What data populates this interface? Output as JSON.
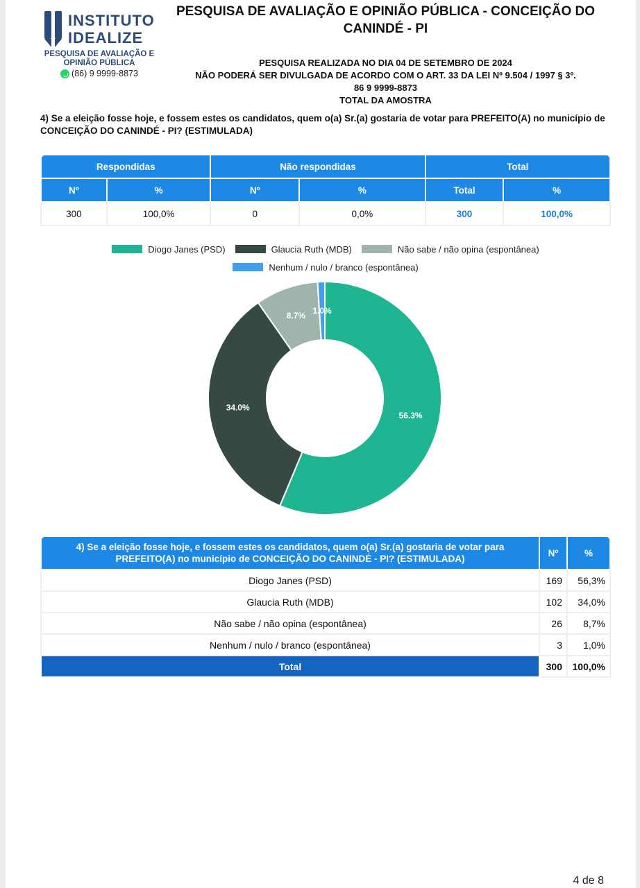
{
  "header": {
    "logo": {
      "name_line1": "INSTITUTO",
      "name_line2": "IDEALIZE",
      "subtitle": "PESQUISA DE AVALIAÇÃO E OPINIÃO PÚBLICA",
      "phone": "(86) 9 9999-8873"
    },
    "title": "PESQUISA DE AVALIAÇÃO E OPINIÃO PÚBLICA - CONCEIÇÃO DO CANINDÉ - PI",
    "info": [
      "PESQUISA REALIZADA NO DIA 04 DE SETEMBRO DE 2024",
      "NÃO PODERÁ SER DIVULGADA DE ACORDO COM O ART. 33 DA LEI Nº 9.504 / 1997 § 3º.",
      "86 9 9999-8873",
      "TOTAL DA AMOSTRA"
    ],
    "question": "4) Se a eleição fosse hoje, e fossem estes os candidatos, quem o(a) Sr.(a) gostaria de votar para PREFEITO(A) no município de CONCEIÇÃO DO CANINDÉ - PI? (ESTIMULADA)"
  },
  "summary": {
    "groups": [
      "Respondidas",
      "Não respondidas",
      "Total"
    ],
    "subheaders": [
      "Nº",
      "%",
      "Nº",
      "%",
      "Total",
      "%"
    ],
    "values": [
      "300",
      "100,0%",
      "0",
      "0,0%",
      "300",
      "100,0%"
    ]
  },
  "chart_data": {
    "type": "pie",
    "donut": true,
    "categories": [
      "Diogo Janes (PSD)",
      "Glaucia Ruth (MDB)",
      "Não sabe / não opina (espontânea)",
      "Nenhum / nulo / branco (espontânea)"
    ],
    "values": [
      56.3,
      34.0,
      8.7,
      1.0
    ],
    "labels": [
      "56.3%",
      "34.0%",
      "8.7%",
      "1.0%"
    ],
    "colors": [
      "#1fb592",
      "#364a43",
      "#9fb5ab",
      "#3f9ef0"
    ],
    "legend_position": "top"
  },
  "results": {
    "question_header": "4) Se a eleição fosse hoje, e fossem estes os candidatos, quem o(a) Sr.(a) gostaria de votar para PREFEITO(A) no município de CONCEIÇÃO DO CANINDÉ - PI? (ESTIMULADA)",
    "count_header": "Nº",
    "pct_header": "%",
    "rows": [
      {
        "label": "Diogo Janes (PSD)",
        "count": "169",
        "pct": "56,3%"
      },
      {
        "label": "Glaucia Ruth (MDB)",
        "count": "102",
        "pct": "34,0%"
      },
      {
        "label": "Não sabe / não opina (espontânea)",
        "count": "26",
        "pct": "8,7%"
      },
      {
        "label": "Nenhum / nulo / branco (espontânea)",
        "count": "3",
        "pct": "1,0%"
      }
    ],
    "total": {
      "label": "Total",
      "count": "300",
      "pct": "100,0%"
    }
  },
  "footer": {
    "page": "4 de 8"
  }
}
